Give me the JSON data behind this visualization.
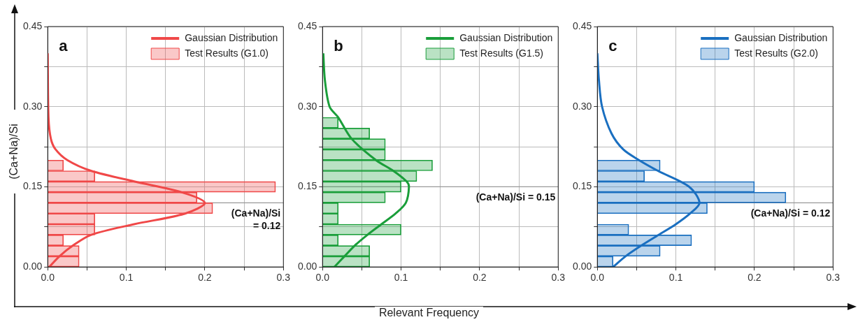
{
  "chart_data": [
    {
      "type": "bar",
      "orientation": "horizontal",
      "ylabel": "(Ca+Na)/Si",
      "annotations": [
        "a"
      ],
      "legend": "top right",
      "grid": true,
      "series": [
        {
          "name": "Gaussian Distribution",
          "type": "line",
          "color": "#f04848",
          "x": [
            0,
            0.02,
            0.04,
            0.06,
            0.08,
            0.1,
            0.12,
            0.14,
            0.16,
            0.18,
            0.2,
            0.22,
            0.24,
            0.28,
            0.4
          ],
          "values": [
            0.002,
            0.015,
            0.032,
            0.055,
            0.11,
            0.175,
            0.2,
            0.17,
            0.11,
            0.055,
            0.025,
            0.01,
            0.004,
            0.001,
            0
          ]
        },
        {
          "name": "Test Results (G1.0)",
          "type": "bar",
          "color": "#f04848",
          "x": [
            0.01,
            0.03,
            0.05,
            0.07,
            0.09,
            0.11,
            0.13,
            0.15,
            0.17,
            0.19
          ],
          "values": [
            0.04,
            0.04,
            0.02,
            0.06,
            0.06,
            0.21,
            0.19,
            0.29,
            0.06,
            0.02
          ]
        }
      ],
      "ref_lines": [
        {
          "axis": "y",
          "value": 0.12,
          "label": "(Ca+Na)/Si\n= 0.12",
          "color": "#999999"
        }
      ],
      "xlim": [
        0,
        0.3
      ],
      "xticks": [
        {
          "value": 0,
          "label": "0.0"
        },
        {
          "value": 0.05,
          "label": null
        },
        {
          "value": 0.1,
          "label": "0.1"
        },
        {
          "value": 0.15,
          "label": null
        },
        {
          "value": 0.2,
          "label": "0.2"
        },
        {
          "value": 0.25,
          "label": null
        },
        {
          "value": 0.3,
          "label": "0.3"
        }
      ],
      "ylim": [
        0,
        0.45
      ],
      "yticks": [
        {
          "value": 0,
          "label": "0.00"
        },
        {
          "value": 0.075,
          "label": null
        },
        {
          "value": 0.15,
          "label": "0.15"
        },
        {
          "value": 0.225,
          "label": null
        },
        {
          "value": 0.3,
          "label": "0.30"
        },
        {
          "value": 0.375,
          "label": null
        },
        {
          "value": 0.45,
          "label": "0.45"
        }
      ]
    },
    {
      "type": "bar",
      "orientation": "horizontal",
      "xlabel": "Relevant Frequency",
      "annotations": [
        "b"
      ],
      "legend": "top right",
      "grid": true,
      "series": [
        {
          "name": "Gaussian Distribution",
          "type": "line",
          "color": "#1a9e3a",
          "x": [
            0,
            0.02,
            0.04,
            0.06,
            0.08,
            0.1,
            0.12,
            0.15,
            0.16,
            0.18,
            0.2,
            0.24,
            0.28,
            0.3,
            0.35,
            0.4
          ],
          "values": [
            0.015,
            0.028,
            0.041,
            0.057,
            0.075,
            0.093,
            0.106,
            0.11,
            0.107,
            0.09,
            0.068,
            0.037,
            0.02,
            0.009,
            0.003,
            0.001
          ]
        },
        {
          "name": "Test Results (G1.5)",
          "type": "bar",
          "color": "#1a9e3a",
          "x": [
            0.01,
            0.03,
            0.05,
            0.07,
            0.09,
            0.11,
            0.13,
            0.15,
            0.17,
            0.19,
            0.21,
            0.23,
            0.25,
            0.27
          ],
          "values": [
            0.06,
            0.06,
            0.02,
            0.1,
            0.02,
            0.02,
            0.08,
            0.1,
            0.12,
            0.14,
            0.08,
            0.08,
            0.06,
            0.02
          ]
        }
      ],
      "ref_lines": [
        {
          "axis": "y",
          "value": 0.15,
          "label": "(Ca+Na)/Si = 0.15",
          "color": "#999999"
        }
      ],
      "xlim": [
        0,
        0.3
      ],
      "xticks": [
        {
          "value": 0,
          "label": "0.0"
        },
        {
          "value": 0.05,
          "label": null
        },
        {
          "value": 0.1,
          "label": "0.1"
        },
        {
          "value": 0.15,
          "label": null
        },
        {
          "value": 0.2,
          "label": "0.2"
        },
        {
          "value": 0.25,
          "label": null
        },
        {
          "value": 0.3,
          "label": "0.3"
        }
      ],
      "ylim": [
        0,
        0.45
      ],
      "yticks": [
        {
          "value": 0,
          "label": "0.00"
        },
        {
          "value": 0.075,
          "label": null
        },
        {
          "value": 0.15,
          "label": "0.15"
        },
        {
          "value": 0.225,
          "label": null
        },
        {
          "value": 0.3,
          "label": "0.30"
        },
        {
          "value": 0.375,
          "label": null
        },
        {
          "value": 0.45,
          "label": "0.45"
        }
      ]
    },
    {
      "type": "bar",
      "orientation": "horizontal",
      "annotations": [
        "c"
      ],
      "legend": "top right",
      "grid": true,
      "series": [
        {
          "name": "Gaussian Distribution",
          "type": "line",
          "color": "#1a6fc0",
          "x": [
            0,
            0.02,
            0.04,
            0.06,
            0.08,
            0.1,
            0.12,
            0.15,
            0.18,
            0.2,
            0.22,
            0.25,
            0.3,
            0.35,
            0.4
          ],
          "values": [
            0.02,
            0.036,
            0.056,
            0.078,
            0.1,
            0.118,
            0.13,
            0.117,
            0.077,
            0.053,
            0.033,
            0.018,
            0.006,
            0.002,
            0
          ]
        },
        {
          "name": "Test Results (G2.0)",
          "type": "bar",
          "color": "#1a6fc0",
          "x": [
            0.01,
            0.03,
            0.05,
            0.07,
            0.09,
            0.11,
            0.13,
            0.15,
            0.17,
            0.19
          ],
          "values": [
            0.02,
            0.08,
            0.12,
            0.04,
            0,
            0.14,
            0.24,
            0.2,
            0.06,
            0.08
          ]
        }
      ],
      "ref_lines": [
        {
          "axis": "y",
          "value": 0.12,
          "label": "(Ca+Na)/Si = 0.12",
          "color": "#999999"
        }
      ],
      "xlim": [
        0,
        0.3
      ],
      "xticks": [
        {
          "value": 0,
          "label": "0.0"
        },
        {
          "value": 0.05,
          "label": null
        },
        {
          "value": 0.1,
          "label": "0.1"
        },
        {
          "value": 0.15,
          "label": null
        },
        {
          "value": 0.2,
          "label": "0.2"
        },
        {
          "value": 0.25,
          "label": null
        },
        {
          "value": 0.3,
          "label": "0.3"
        }
      ],
      "ylim": [
        0,
        0.45
      ],
      "yticks": [
        {
          "value": 0,
          "label": "0.00"
        },
        {
          "value": 0.075,
          "label": null
        },
        {
          "value": 0.15,
          "label": "0.15"
        },
        {
          "value": 0.225,
          "label": null
        },
        {
          "value": 0.3,
          "label": "0.30"
        },
        {
          "value": 0.375,
          "label": null
        },
        {
          "value": 0.45,
          "label": "0.45"
        }
      ]
    }
  ]
}
